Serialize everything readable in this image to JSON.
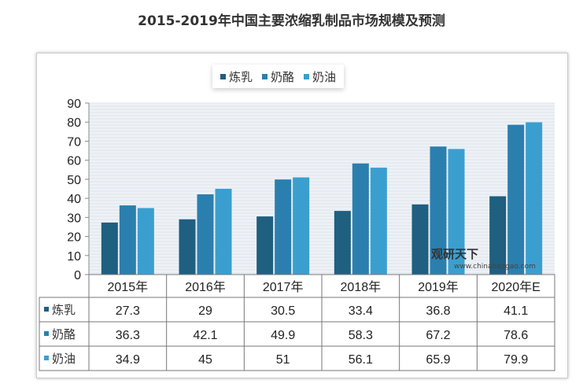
{
  "chart_data": {
    "type": "bar",
    "title": "2015-2019年中国主要浓缩乳制品市场规模及预测",
    "categories": [
      "2015年",
      "2016年",
      "2017年",
      "2018年",
      "2019年",
      "2020年E"
    ],
    "series": [
      {
        "name": "炼乳",
        "values": [
          27.3,
          29,
          30.5,
          33.4,
          36.8,
          41.1
        ],
        "color": "#1f5f80"
      },
      {
        "name": "奶酪",
        "values": [
          36.3,
          42.1,
          49.9,
          58.3,
          67.2,
          78.6
        ],
        "color": "#2b7fae"
      },
      {
        "name": "奶油",
        "values": [
          34.9,
          45,
          51,
          56.1,
          65.9,
          79.9
        ],
        "color": "#3a9fcf"
      }
    ],
    "ylim": [
      0,
      90
    ],
    "yticks": [
      0,
      10,
      20,
      30,
      40,
      50,
      60,
      70,
      80,
      90
    ],
    "grid": true,
    "legend": "top-center",
    "data_table": true
  },
  "watermark": {
    "brand": "观研天下",
    "url": "www.chinabaogao.com"
  }
}
